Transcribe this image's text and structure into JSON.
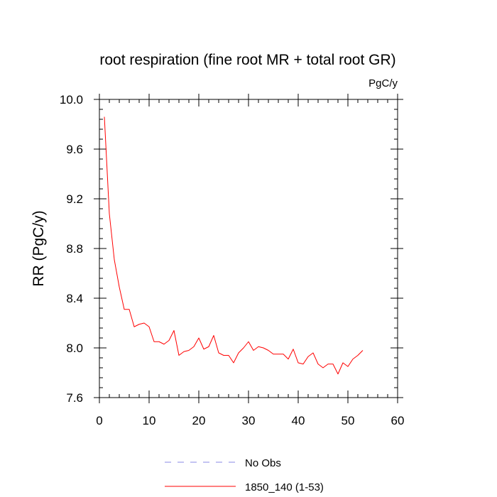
{
  "chart_data": {
    "type": "line",
    "title": "root respiration (fine root MR + total root GR)",
    "units": "PgC/y",
    "ylabel": "RR  (PgC/y)",
    "xlabel": "",
    "xlim": [
      0,
      60
    ],
    "ylim": [
      7.6,
      10.0
    ],
    "xticks": [
      0,
      10,
      20,
      30,
      40,
      50,
      60
    ],
    "yticks": [
      7.6,
      8.0,
      8.4,
      8.8,
      9.2,
      9.6,
      10.0
    ],
    "ytick_labels": [
      "7.6",
      "8.0",
      "8.4",
      "8.8",
      "9.2",
      "9.6",
      "10.0"
    ],
    "grid": false,
    "legend_position": "bottom-center",
    "series": [
      {
        "name": "No Obs",
        "color": "#8a8ae6",
        "style": "dashed",
        "x": [],
        "y": []
      },
      {
        "name": "1850_140 (1-53)",
        "color": "#ff0000",
        "style": "solid",
        "x": [
          1,
          2,
          3,
          4,
          5,
          6,
          7,
          8,
          9,
          10,
          11,
          12,
          13,
          14,
          15,
          16,
          17,
          18,
          19,
          20,
          21,
          22,
          23,
          24,
          25,
          26,
          27,
          28,
          29,
          30,
          31,
          32,
          33,
          34,
          35,
          36,
          37,
          38,
          39,
          40,
          41,
          42,
          43,
          44,
          45,
          46,
          47,
          48,
          49,
          50,
          51,
          52,
          53
        ],
        "y": [
          9.86,
          9.08,
          8.71,
          8.49,
          8.31,
          8.31,
          8.17,
          8.19,
          8.2,
          8.17,
          8.05,
          8.05,
          8.03,
          8.06,
          8.14,
          7.94,
          7.97,
          7.98,
          8.01,
          8.08,
          7.99,
          8.01,
          8.1,
          7.96,
          7.94,
          7.94,
          7.88,
          7.96,
          8.0,
          8.05,
          7.98,
          8.01,
          8.0,
          7.98,
          7.95,
          7.95,
          7.95,
          7.91,
          7.99,
          7.88,
          7.87,
          7.93,
          7.96,
          7.87,
          7.84,
          7.87,
          7.87,
          7.79,
          7.88,
          7.85,
          7.91,
          7.94,
          7.98
        ]
      }
    ]
  }
}
